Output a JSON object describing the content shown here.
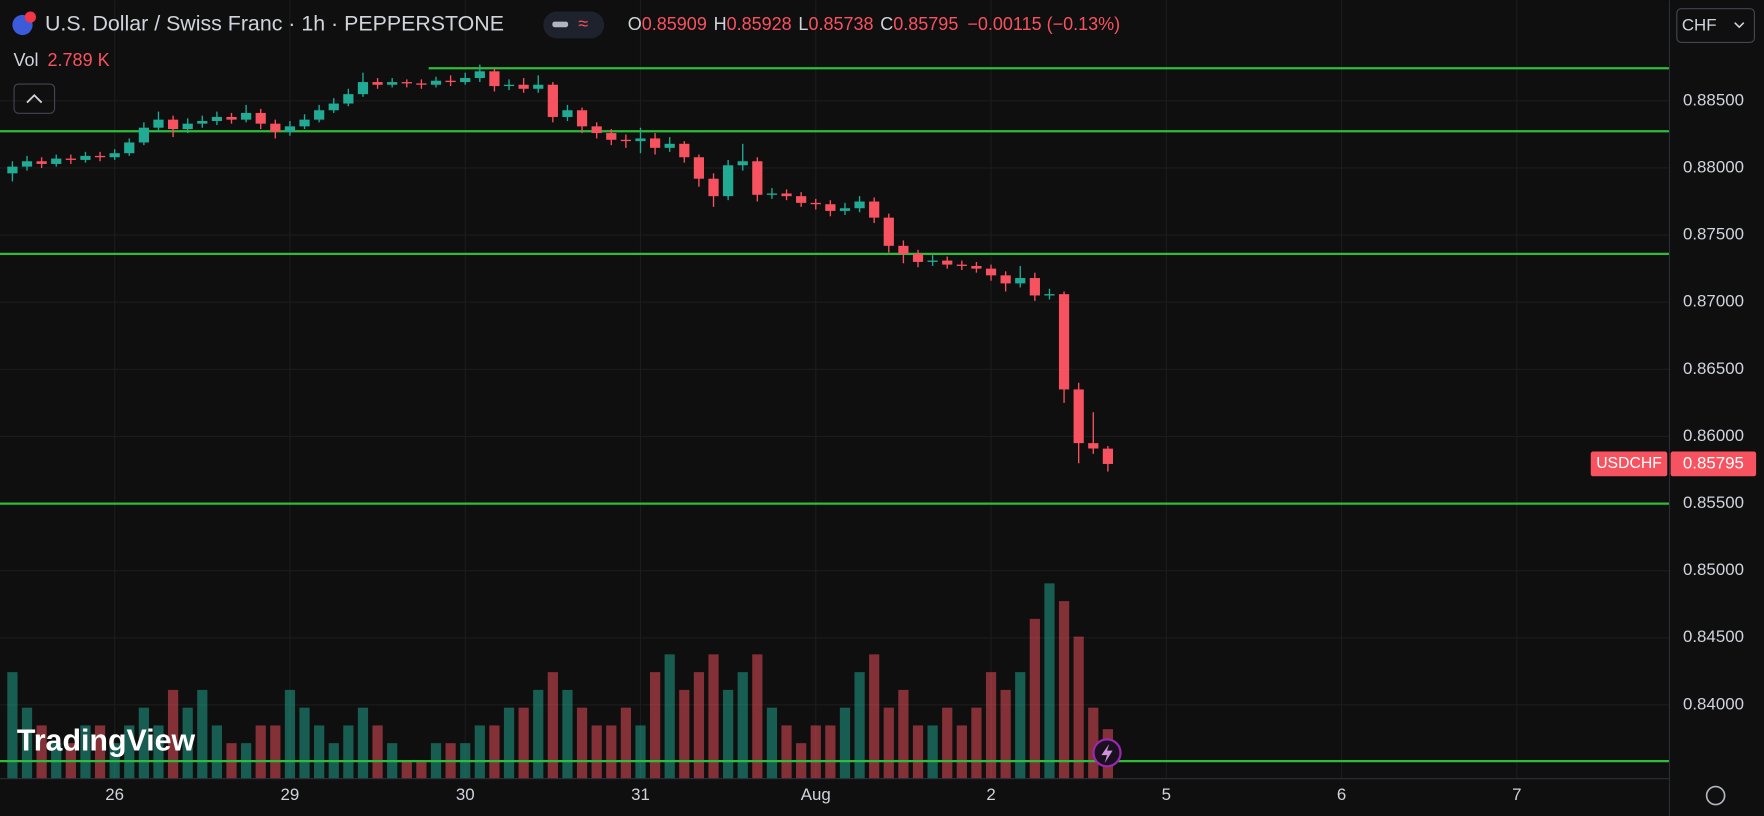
{
  "header": {
    "symbol": "U.S. Dollar / Swiss Franc · 1h · PEPPERSTONE",
    "open_label": "O",
    "open": "0.85909",
    "high_label": "H",
    "high": "0.85928",
    "low_label": "L",
    "low": "0.85738",
    "close_label": "C",
    "close": "0.85795",
    "change": "−0.00115 (−0.13%)",
    "volume_label": "Vol",
    "volume": "2.789 K",
    "currency_button": "CHF",
    "price_tag_symbol": "USDCHF",
    "price_tag_value": "0.85795",
    "logo": "TradingView"
  },
  "chart_data": {
    "type": "candlestick",
    "up_color": "#22ab94",
    "down_color": "#f7525f",
    "line_color": "#2ebd3a",
    "grid": true,
    "xlim": [
      -15.7,
      212.9
    ],
    "ylim": [
      0.8345,
      0.8925
    ],
    "volume_ylim": [
      0,
      14
    ],
    "xticks": [
      {
        "value": 0,
        "label": "26"
      },
      {
        "value": 24,
        "label": "29"
      },
      {
        "value": 48,
        "label": "30"
      },
      {
        "value": 72,
        "label": "31"
      },
      {
        "value": 96,
        "label": "Aug"
      },
      {
        "value": 120,
        "label": "2"
      },
      {
        "value": 144,
        "label": "5"
      },
      {
        "value": 168,
        "label": "6"
      },
      {
        "value": 192,
        "label": "7"
      }
    ],
    "yticks": [
      {
        "value": 0.84,
        "label": "0.84000"
      },
      {
        "value": 0.845,
        "label": "0.84500"
      },
      {
        "value": 0.85,
        "label": "0.85000"
      },
      {
        "value": 0.855,
        "label": "0.85500"
      },
      {
        "value": 0.86,
        "label": "0.86000"
      },
      {
        "value": 0.865,
        "label": "0.86500"
      },
      {
        "value": 0.87,
        "label": "0.87000"
      },
      {
        "value": 0.875,
        "label": "0.87500"
      },
      {
        "value": 0.88,
        "label": "0.88000"
      },
      {
        "value": 0.885,
        "label": "0.88500"
      }
    ],
    "horizontal_lines": [
      {
        "value": 0.88743,
        "x_start": 43
      },
      {
        "value": 0.88274
      },
      {
        "value": 0.8736
      },
      {
        "value": 0.85499
      },
      {
        "value": 0.83581
      }
    ],
    "x": [
      -14,
      -12,
      -10,
      -8,
      -6,
      -4,
      -2,
      0,
      2,
      4,
      6,
      8,
      10,
      12,
      14,
      16,
      18,
      20,
      22,
      24,
      26,
      28,
      30,
      32,
      34,
      36,
      38,
      40,
      42,
      44,
      46,
      48,
      50,
      52,
      54,
      56,
      58,
      60,
      62,
      64,
      66,
      68,
      70,
      72,
      74,
      76,
      78,
      80,
      82,
      84,
      86,
      88,
      90,
      92,
      94,
      96,
      98,
      100,
      102,
      104,
      106,
      108,
      110,
      112,
      114,
      116,
      118,
      120,
      122,
      124,
      126,
      128,
      130,
      132,
      134,
      136
    ],
    "open": [
      0.8796,
      0.8801,
      0.8805,
      0.8803,
      0.8807,
      0.8806,
      0.8809,
      0.8808,
      0.8811,
      0.8819,
      0.883,
      0.8836,
      0.8829,
      0.8833,
      0.8835,
      0.8838,
      0.8836,
      0.8841,
      0.8833,
      0.8827,
      0.8831,
      0.8836,
      0.8843,
      0.8848,
      0.8855,
      0.8864,
      0.8862,
      0.8864,
      0.8863,
      0.8862,
      0.8865,
      0.8864,
      0.8867,
      0.8872,
      0.8861,
      0.8862,
      0.8859,
      0.8862,
      0.8838,
      0.8843,
      0.8831,
      0.8826,
      0.8821,
      0.882,
      0.8822,
      0.8815,
      0.8818,
      0.8808,
      0.8792,
      0.8779,
      0.8802,
      0.8805,
      0.878,
      0.8781,
      0.8779,
      0.8774,
      0.8773,
      0.8768,
      0.877,
      0.8775,
      0.8763,
      0.8742,
      0.8736,
      0.873,
      0.8731,
      0.8728,
      0.8727,
      0.8725,
      0.872,
      0.8714,
      0.8718,
      0.8705,
      0.8706,
      0.8635,
      0.8595,
      0.85909
    ],
    "high": [
      0.8805,
      0.8809,
      0.8808,
      0.881,
      0.881,
      0.8812,
      0.8812,
      0.8814,
      0.8822,
      0.8834,
      0.8842,
      0.8839,
      0.8837,
      0.8839,
      0.8842,
      0.8841,
      0.8847,
      0.8844,
      0.8836,
      0.8835,
      0.884,
      0.8847,
      0.8852,
      0.8859,
      0.8871,
      0.8867,
      0.8867,
      0.8866,
      0.8866,
      0.8868,
      0.8869,
      0.8871,
      0.8877,
      0.8874,
      0.8866,
      0.8867,
      0.8869,
      0.8864,
      0.8847,
      0.8845,
      0.8834,
      0.8829,
      0.8825,
      0.883,
      0.8826,
      0.8823,
      0.882,
      0.881,
      0.8796,
      0.8806,
      0.8818,
      0.8808,
      0.8785,
      0.8784,
      0.8782,
      0.8777,
      0.8776,
      0.8774,
      0.8779,
      0.8778,
      0.8766,
      0.8746,
      0.8739,
      0.8735,
      0.8734,
      0.8731,
      0.873,
      0.8728,
      0.8723,
      0.8727,
      0.8722,
      0.871,
      0.8708,
      0.864,
      0.8618,
      0.85928
    ],
    "low": [
      0.879,
      0.8798,
      0.88,
      0.8801,
      0.8803,
      0.8804,
      0.8805,
      0.8806,
      0.8809,
      0.8817,
      0.8827,
      0.8823,
      0.8826,
      0.883,
      0.8832,
      0.8833,
      0.8834,
      0.8829,
      0.8822,
      0.8824,
      0.8829,
      0.8834,
      0.8841,
      0.8846,
      0.8853,
      0.8859,
      0.886,
      0.886,
      0.8859,
      0.886,
      0.8861,
      0.8862,
      0.8864,
      0.8857,
      0.8858,
      0.8856,
      0.8856,
      0.8834,
      0.8835,
      0.8826,
      0.8822,
      0.8817,
      0.8815,
      0.8811,
      0.881,
      0.8812,
      0.8804,
      0.8786,
      0.8771,
      0.8776,
      0.8798,
      0.8775,
      0.8777,
      0.8776,
      0.8771,
      0.8769,
      0.8764,
      0.8765,
      0.8767,
      0.8759,
      0.8737,
      0.8729,
      0.8726,
      0.8727,
      0.8725,
      0.8724,
      0.8722,
      0.8716,
      0.8708,
      0.8711,
      0.8701,
      0.8702,
      0.8625,
      0.858,
      0.8587,
      0.85738
    ],
    "close": [
      0.8801,
      0.8805,
      0.8803,
      0.8807,
      0.8806,
      0.8809,
      0.8808,
      0.8811,
      0.8819,
      0.883,
      0.8836,
      0.8829,
      0.8833,
      0.8835,
      0.8838,
      0.8836,
      0.8841,
      0.8833,
      0.8827,
      0.8831,
      0.8836,
      0.8843,
      0.8848,
      0.8855,
      0.8864,
      0.8862,
      0.8864,
      0.8863,
      0.8862,
      0.8865,
      0.8864,
      0.8867,
      0.8872,
      0.8861,
      0.8862,
      0.8859,
      0.8862,
      0.8838,
      0.8843,
      0.8831,
      0.8826,
      0.8821,
      0.882,
      0.8822,
      0.8815,
      0.8818,
      0.8808,
      0.8792,
      0.8779,
      0.8802,
      0.8805,
      0.878,
      0.8781,
      0.8779,
      0.8774,
      0.8773,
      0.8768,
      0.877,
      0.8775,
      0.8763,
      0.8742,
      0.8736,
      0.873,
      0.8731,
      0.8728,
      0.8727,
      0.8725,
      0.872,
      0.8714,
      0.8718,
      0.8705,
      0.8706,
      0.8635,
      0.8595,
      0.8591,
      0.85795
    ],
    "volume": [
      6,
      4,
      3,
      2,
      2,
      3,
      3,
      2,
      3,
      4,
      3,
      5,
      4,
      5,
      3,
      2,
      2,
      3,
      3,
      5,
      4,
      3,
      2,
      3,
      4,
      3,
      2,
      1,
      1,
      2,
      2,
      2,
      3,
      3,
      4,
      4,
      5,
      6,
      5,
      4,
      3,
      3,
      4,
      3,
      6,
      7,
      5,
      6,
      7,
      5,
      6,
      7,
      4,
      3,
      2,
      3,
      3,
      4,
      6,
      7,
      4,
      5,
      3,
      3,
      4,
      3,
      4,
      6,
      5,
      6,
      9,
      11,
      10,
      8,
      4,
      2.789
    ]
  }
}
